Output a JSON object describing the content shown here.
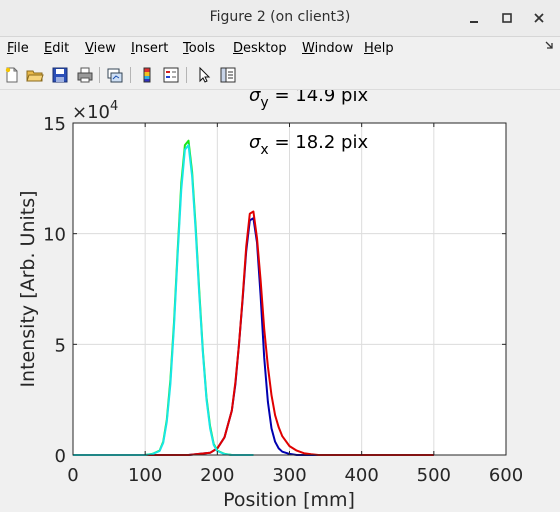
{
  "window": {
    "title": "Figure 2 (on client3)",
    "minimize_icon": "minimize-icon",
    "maximize_icon": "maximize-icon",
    "close_icon": "close-icon"
  },
  "menu": {
    "items": [
      {
        "label": "File",
        "accel": "F"
      },
      {
        "label": "Edit",
        "accel": "E"
      },
      {
        "label": "View",
        "accel": "V"
      },
      {
        "label": "Insert",
        "accel": "I"
      },
      {
        "label": "Tools",
        "accel": "T"
      },
      {
        "label": "Desktop",
        "accel": "D"
      },
      {
        "label": "Window",
        "accel": "W"
      },
      {
        "label": "Help",
        "accel": "H"
      }
    ],
    "overflow_icon": "pin-arrow-icon"
  },
  "toolbar": {
    "icons": [
      "new-figure-icon",
      "open-file-icon",
      "save-icon",
      "print-icon",
      "link-plot-icon",
      "insert-colorbar-icon",
      "insert-legend-icon",
      "edit-plot-pointer-icon",
      "property-inspector-icon"
    ]
  },
  "colors": {
    "series_blue": "#0000b0",
    "series_red": "#e00000",
    "series_green": "#19e619",
    "series_cyan": "#19e6e6",
    "axes_bg": "#ffffff",
    "figure_bg": "#f0f0f0"
  },
  "annotations": {
    "sigma_y_symbol": "σ",
    "sigma_y_sub": "y",
    "sigma_y_text": " = 14.9 pix",
    "sigma_x_symbol": "σ",
    "sigma_x_sub": "x",
    "sigma_x_text": " = 18.2 pix"
  },
  "chart_data": {
    "type": "line",
    "xlabel": "Position [mm]",
    "ylabel": "Intensity [Arb. Units]",
    "xlim": [
      0,
      600
    ],
    "ylim": [
      0,
      150000
    ],
    "xticks": [
      0,
      100,
      200,
      300,
      400,
      500,
      600
    ],
    "yticks": [
      0,
      5,
      10,
      15
    ],
    "y_exponent_base": "×10",
    "y_exponent_power": "4",
    "grid": true,
    "series": [
      {
        "color": "#0000b0",
        "x": [
          0,
          160,
          190,
          200,
          210,
          220,
          225,
          230,
          235,
          240,
          245,
          250,
          255,
          260,
          265,
          270,
          275,
          280,
          285,
          290,
          300,
          310,
          500
        ],
        "y": [
          0,
          0,
          1000,
          3000,
          8000,
          20000,
          32000,
          50000,
          70000,
          92000,
          106000,
          107000,
          96000,
          72000,
          44000,
          24000,
          12000,
          6000,
          3000,
          1500,
          500,
          0,
          0
        ]
      },
      {
        "color": "#e00000",
        "x": [
          0,
          160,
          190,
          200,
          210,
          220,
          225,
          230,
          235,
          240,
          245,
          250,
          255,
          260,
          265,
          270,
          275,
          280,
          285,
          290,
          300,
          310,
          320,
          330,
          340,
          500
        ],
        "y": [
          0,
          0,
          1000,
          3000,
          8000,
          20000,
          33000,
          50000,
          71000,
          94000,
          109000,
          110000,
          98000,
          79000,
          57000,
          40000,
          27000,
          18000,
          12500,
          8500,
          4000,
          2000,
          800,
          300,
          0,
          0
        ]
      },
      {
        "color": "#19e619",
        "x": [
          0,
          100,
          110,
          120,
          125,
          130,
          135,
          140,
          145,
          150,
          155,
          160,
          165,
          170,
          175,
          180,
          185,
          190,
          195,
          200,
          210,
          220,
          250
        ],
        "y": [
          0,
          0,
          500,
          2000,
          6000,
          16000,
          34000,
          60000,
          92000,
          123000,
          140000,
          142000,
          128000,
          103000,
          74000,
          47000,
          26000,
          13000,
          5000,
          2000,
          500,
          0,
          0
        ]
      },
      {
        "color": "#19e6e6",
        "x": [
          0,
          100,
          110,
          120,
          125,
          130,
          135,
          140,
          145,
          150,
          155,
          160,
          165,
          170,
          175,
          180,
          185,
          190,
          195,
          200,
          210,
          220,
          250
        ],
        "y": [
          0,
          0,
          400,
          1800,
          5500,
          15000,
          32000,
          58000,
          90000,
          120000,
          138000,
          140000,
          126000,
          101000,
          72000,
          46000,
          25000,
          12000,
          4500,
          1800,
          400,
          0,
          0
        ]
      }
    ]
  }
}
